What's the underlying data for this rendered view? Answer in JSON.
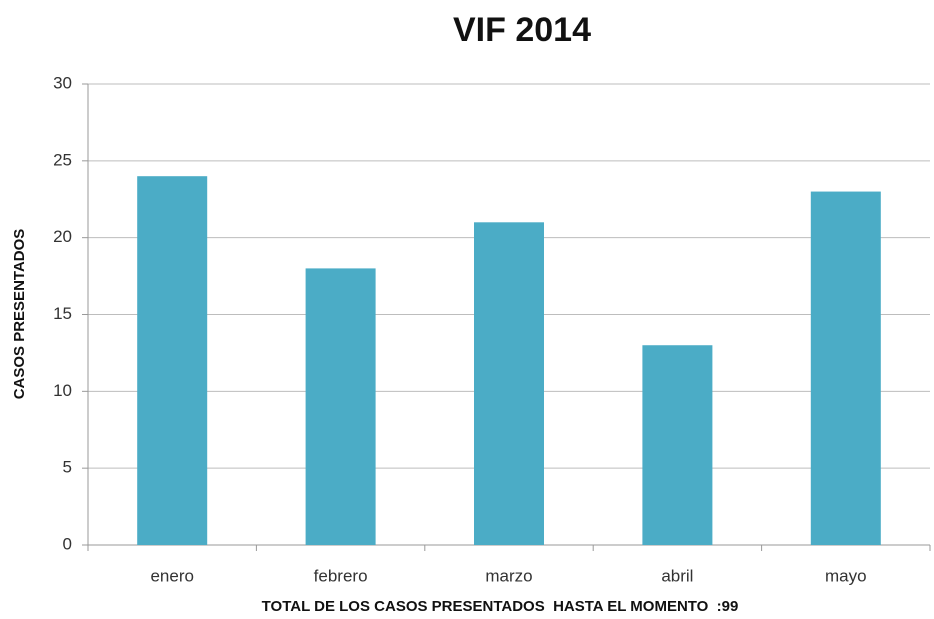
{
  "chart_data": {
    "type": "bar",
    "title": "VIF 2014",
    "y_label": "CASOS PRESENTADOS",
    "x_label": "TOTAL DE LOS CASOS PRESENTADOS  HASTA EL MOMENTO  :99",
    "categories": [
      "enero",
      "febrero",
      "marzo",
      "abril",
      "mayo"
    ],
    "values": [
      24,
      18,
      21,
      13,
      23
    ],
    "color": "#4bacc6",
    "ylim": [
      0,
      30
    ],
    "yticks": [
      0,
      5,
      10,
      15,
      20,
      25,
      30
    ],
    "grid": true
  }
}
